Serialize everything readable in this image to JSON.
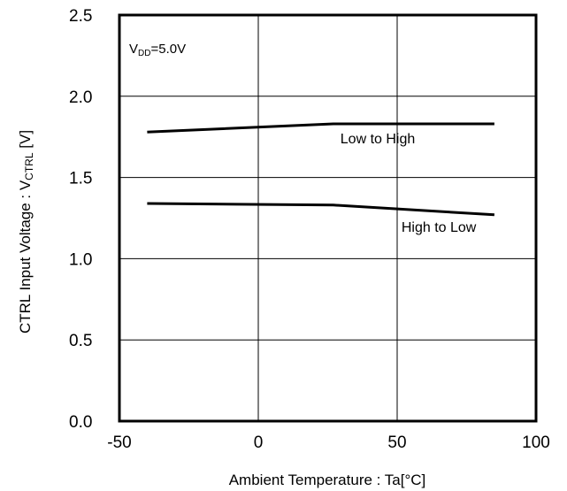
{
  "chart_data": {
    "type": "line",
    "xlabel": "Ambient Temperature : Ta[°C]",
    "ylabel": {
      "main": "CTRL Input Voltage : V",
      "sub": "CTRL",
      "unit": " [V]"
    },
    "xlim": [
      -50,
      100
    ],
    "ylim": [
      0.0,
      2.5
    ],
    "x_ticks": [
      -50,
      0,
      50,
      100
    ],
    "y_ticks": [
      0.0,
      0.5,
      1.0,
      1.5,
      2.0,
      2.5
    ],
    "x_tick_labels": [
      "-50",
      "0",
      "50",
      "100"
    ],
    "y_tick_labels": [
      "0.0",
      "0.5",
      "1.0",
      "1.5",
      "2.0",
      "2.5"
    ],
    "grid": true,
    "annotation": {
      "main": "V",
      "sub": "DD",
      "rest": "=5.0V"
    },
    "series": [
      {
        "name": "Low to High",
        "x": [
          -40,
          27,
          85
        ],
        "y": [
          1.78,
          1.83,
          1.83
        ]
      },
      {
        "name": "High to Low",
        "x": [
          -40,
          27,
          85
        ],
        "y": [
          1.34,
          1.33,
          1.27
        ]
      }
    ],
    "colors": {
      "line": "#000000",
      "background": "#ffffff"
    }
  }
}
